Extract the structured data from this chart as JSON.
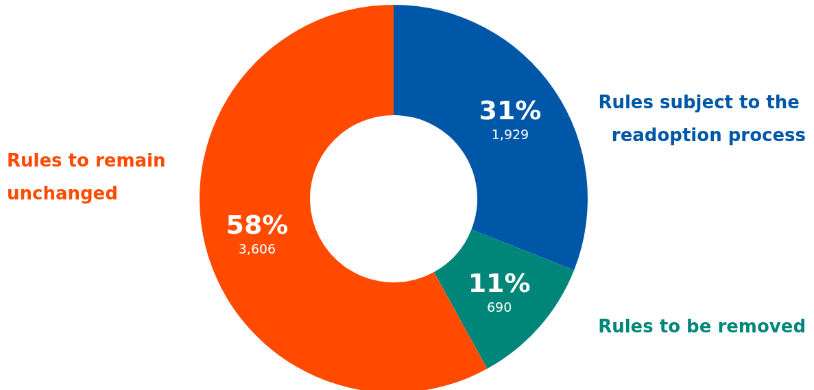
{
  "chart_data": {
    "type": "donut",
    "categories": [
      "Rules subject to the readoption process",
      "Rules to be removed",
      "Rules to remain unchanged"
    ],
    "values": [
      31,
      11,
      58
    ],
    "colors": [
      "#0057a8",
      "#008678",
      "#ff4a00"
    ],
    "value_labels": [
      "31%\n1,929",
      "11%\n690",
      "58%\n3,606"
    ]
  }
}
